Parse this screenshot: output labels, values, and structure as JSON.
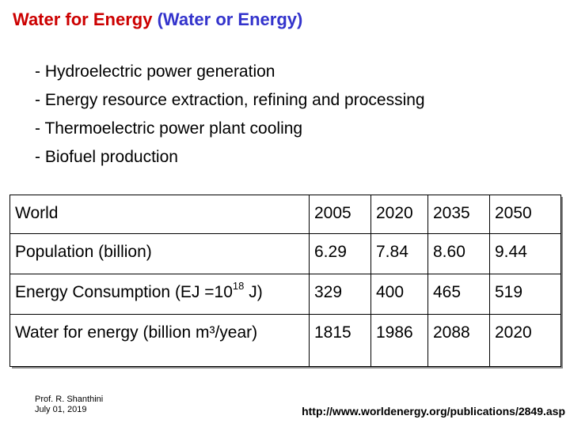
{
  "title": {
    "part1": "Water for Energy",
    "part2": "(Water or Energy)",
    "colors": {
      "part1": "#cc0000",
      "part2": "#3333cc"
    }
  },
  "bullets": [
    "- Hydroelectric power generation",
    "- Energy resource extraction, refining and processing",
    "- Thermoelectric power plant cooling",
    "- Biofuel production"
  ],
  "table": {
    "header": {
      "label": "World",
      "years": [
        "2005",
        "2020",
        "2035",
        "2050"
      ]
    },
    "rows": [
      {
        "label": "Population (billion)",
        "values": [
          "6.29",
          "7.84",
          "8.60",
          "9.44"
        ]
      },
      {
        "label_pre": "Energy Consumption (EJ =10",
        "label_sup": "18",
        "label_post": " J)",
        "values": [
          "329",
          "400",
          "465",
          "519"
        ]
      },
      {
        "label": "Water for energy (billion m³/year)",
        "values": [
          "1815",
          "1986",
          "2088",
          "2020"
        ]
      }
    ]
  },
  "footer": {
    "author": "Prof. R. Shanthini",
    "date": "July 01, 2019",
    "source_url": "http://www.worldenergy.org/publications/2849.asp"
  }
}
